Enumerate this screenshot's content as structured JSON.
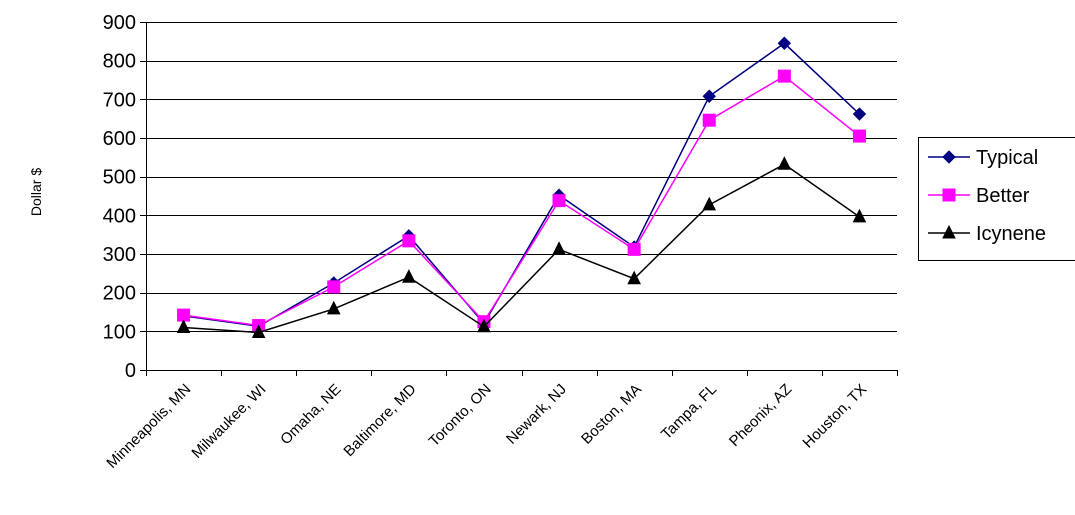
{
  "chart_data": {
    "type": "line",
    "title": "",
    "xlabel": "",
    "ylabel": "Dollar $",
    "ylim": [
      0,
      900
    ],
    "yticks": [
      0,
      100,
      200,
      300,
      400,
      500,
      600,
      700,
      800,
      900
    ],
    "grid": true,
    "legend_position": "right",
    "categories": [
      "Minneapolis, MN",
      "Milwaukee, WI",
      "Omaha, NE",
      "Baltimore, MD",
      "Toronto, ON",
      "Newark, NJ",
      "Boston, MA",
      "Tampa, FL",
      "Pheonix, AZ",
      "Houston, TX"
    ],
    "series": [
      {
        "name": "Typical",
        "color": "#000080",
        "marker": "diamond",
        "values": [
          140,
          113,
          225,
          347,
          120,
          452,
          318,
          708,
          845,
          662
        ]
      },
      {
        "name": "Better",
        "color": "#ff00ff",
        "marker": "square",
        "values": [
          142,
          115,
          215,
          334,
          125,
          438,
          312,
          646,
          760,
          605
        ]
      },
      {
        "name": "Icynene",
        "color": "#000000",
        "marker": "triangle",
        "values": [
          110,
          97,
          158,
          240,
          112,
          312,
          236,
          427,
          532,
          396
        ]
      }
    ]
  }
}
